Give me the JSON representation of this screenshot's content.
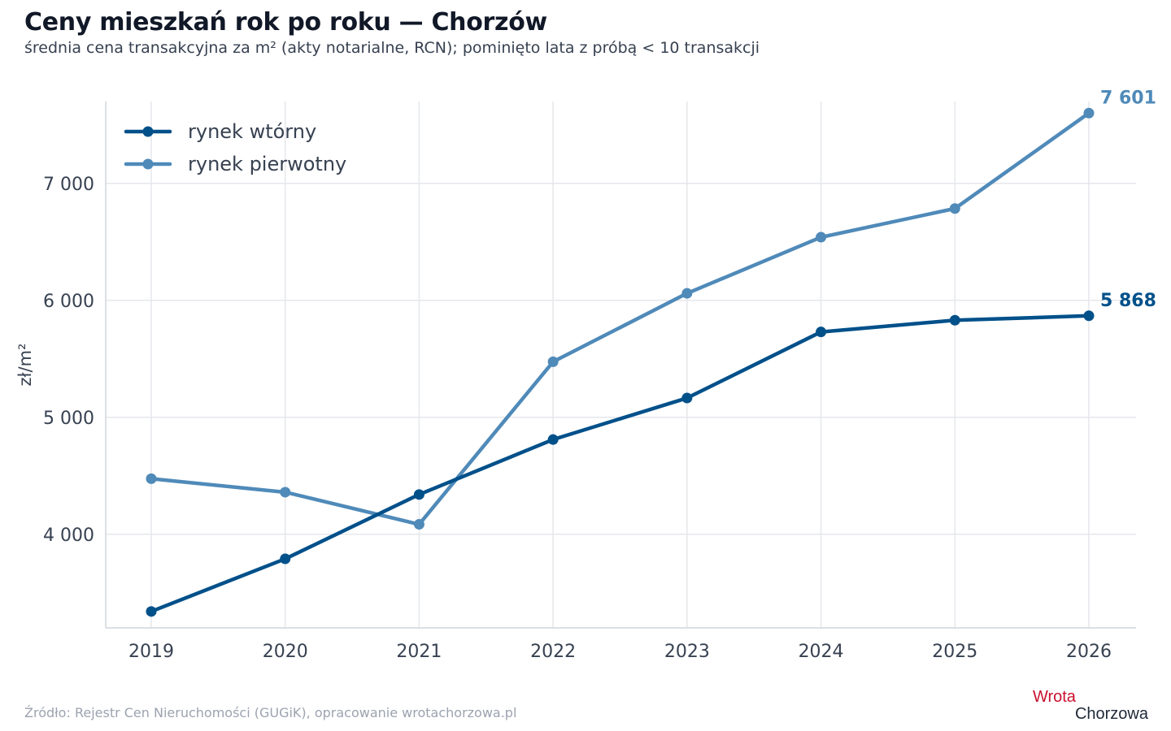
{
  "title": "Ceny mieszkań rok po roku — Chorzów",
  "subtitle": "średnia cena transakcyjna za m² (akty notarialne, RCN); pominięto lata z próbą < 10 transakcji",
  "source": "Źródło: Rejestr Cen Nieruchomości (GUGiK), opracowanie wrotachorzowa.pl",
  "logo": {
    "line1": "Wrota",
    "line2": "Chorzowa"
  },
  "colors": {
    "secondary": "#00508a",
    "primary": "#4f8ab9",
    "grid": "#e5e7eb",
    "axis": "#d1d5db"
  },
  "chart_data": {
    "type": "line",
    "title": "Ceny mieszkań rok po roku — Chorzów",
    "ylabel": "zł/m²",
    "xlabel": "",
    "x": [
      2019,
      2020,
      2021,
      2022,
      2023,
      2024,
      2025,
      2026
    ],
    "ylim": [
      3200,
      7700
    ],
    "yticks": [
      4000,
      5000,
      6000,
      7000
    ],
    "ytick_labels": [
      "4 000",
      "5 000",
      "6 000",
      "7 000"
    ],
    "grid": true,
    "legend_position": "top-left",
    "series": [
      {
        "name": "rynek wtórny",
        "color": "#00508a",
        "values": [
          3340,
          3790,
          4340,
          4810,
          5165,
          5730,
          5830,
          5868
        ],
        "end_label": "5 868"
      },
      {
        "name": "rynek pierwotny",
        "color": "#4f8ab9",
        "values": [
          4475,
          4360,
          4085,
          5475,
          6060,
          6540,
          6785,
          7601
        ],
        "end_label": "7 601"
      }
    ]
  }
}
